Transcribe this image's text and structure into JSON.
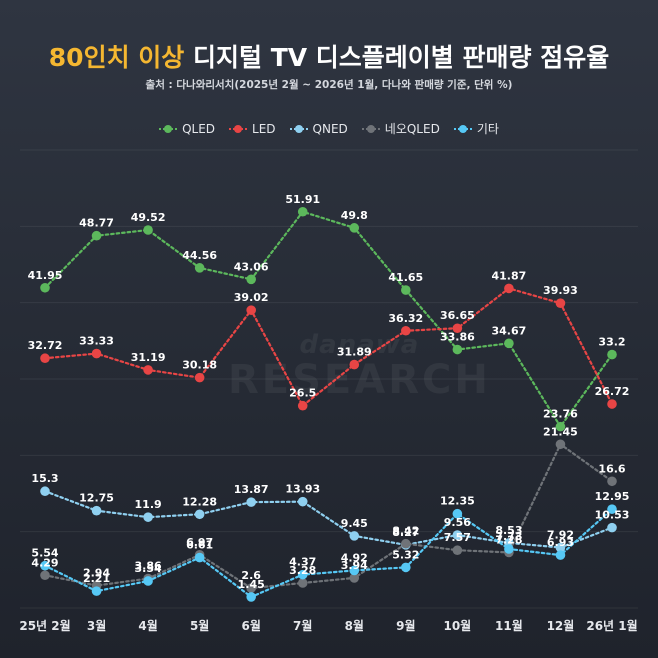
{
  "header": {
    "title_highlight": "80인치 이상",
    "title_rest": "디지털 TV 디스플레이별 판매량 점유율",
    "subtitle": "출처 : 다나와리서치(2025년 2월 ~ 2026년 1월, 다나와 판매량 기준, 단위 %)"
  },
  "watermark": {
    "line1": "danawa",
    "line2": "RESEARCH"
  },
  "colors": {
    "highlight": "#f5b731",
    "QLED": "#5cb85c",
    "LED": "#e84545",
    "QNED": "#8fd0f0",
    "NeoQLED": "#6f7378",
    "Other": "#56c8f5"
  },
  "chart_data": {
    "type": "line",
    "title": "80인치 이상 디지털 TV 디스플레이별 판매량 점유율",
    "xlabel": "",
    "ylabel": "",
    "ylim": [
      0,
      60
    ],
    "grid": true,
    "legend_position": "top-center",
    "categories": [
      "25년 2월",
      "3월",
      "4월",
      "5월",
      "6월",
      "7월",
      "8월",
      "9월",
      "10월",
      "11월",
      "12월",
      "26년 1월"
    ],
    "series": [
      {
        "name": "QLED",
        "color": "#5cb85c",
        "values": [
          41.95,
          48.77,
          49.52,
          44.56,
          43.06,
          51.91,
          49.8,
          41.65,
          33.86,
          34.67,
          23.76,
          33.2
        ]
      },
      {
        "name": "LED",
        "color": "#e84545",
        "values": [
          32.72,
          33.33,
          31.19,
          30.18,
          39.02,
          26.5,
          31.89,
          36.32,
          36.65,
          41.87,
          39.93,
          26.72
        ]
      },
      {
        "name": "QNED",
        "color": "#8fd0f0",
        "values": [
          15.3,
          12.75,
          11.9,
          12.28,
          13.87,
          13.93,
          9.45,
          8.27,
          9.56,
          8.53,
          7.92,
          10.53
        ]
      },
      {
        "name": "네오QLED",
        "color": "#6f7378",
        "values": [
          4.29,
          2.94,
          3.86,
          6.97,
          2.6,
          3.28,
          3.94,
          8.42,
          7.57,
          7.28,
          21.45,
          16.6
        ]
      },
      {
        "name": "기타",
        "color": "#56c8f5",
        "values": [
          5.54,
          2.21,
          3.54,
          6.61,
          1.45,
          4.37,
          4.92,
          5.32,
          12.35,
          7.73,
          6.93,
          12.95
        ]
      }
    ]
  }
}
